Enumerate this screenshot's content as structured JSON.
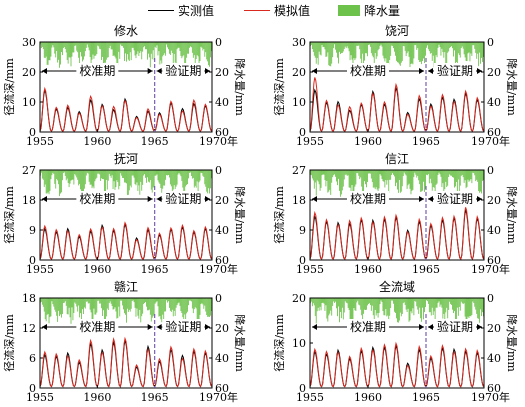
{
  "legend": {
    "observed": "实测值",
    "simulated": "模拟值",
    "precip": "降水量"
  },
  "colors": {
    "observed": "#000000",
    "simulated": "#d9281e",
    "precip": "#6cc24a",
    "divider": "#7a5fb0"
  },
  "period_labels": {
    "calibration": "校准期",
    "validation": "验证期"
  },
  "chart_data": [
    {
      "type": "line",
      "title": "修水",
      "ylabel": "径流深/mm",
      "y2label": "降水量/mm",
      "xlim": [
        1955,
        1970
      ],
      "ylim": [
        0,
        30
      ],
      "y2lim": [
        0,
        60
      ],
      "yticks": [
        "0",
        "10",
        "20",
        "30"
      ],
      "y2ticks": [
        "0",
        "20",
        "40",
        "60"
      ],
      "xticks": [
        "1955",
        "1960",
        "1965",
        "1970年"
      ],
      "divider_x": 1965,
      "peaks": [
        {
          "year": 1955.4,
          "sim": 14.5,
          "obs": 13.8
        },
        {
          "year": 1956.4,
          "sim": 8.2,
          "obs": 7.6
        },
        {
          "year": 1957.4,
          "sim": 8.9,
          "obs": 8.1
        },
        {
          "year": 1958.4,
          "sim": 6.3,
          "obs": 6.8
        },
        {
          "year": 1959.4,
          "sim": 11.9,
          "obs": 10.6
        },
        {
          "year": 1960.4,
          "sim": 8.7,
          "obs": 9.2
        },
        {
          "year": 1961.4,
          "sim": 8.5,
          "obs": 7.4
        },
        {
          "year": 1962.4,
          "sim": 10.4,
          "obs": 11.0
        },
        {
          "year": 1963.4,
          "sim": 4.8,
          "obs": 5.2
        },
        {
          "year": 1964.4,
          "sim": 7.7,
          "obs": 6.9
        },
        {
          "year": 1965.4,
          "sim": 5.9,
          "obs": 6.4
        },
        {
          "year": 1966.4,
          "sim": 10.2,
          "obs": 9.6
        },
        {
          "year": 1967.4,
          "sim": 7.0,
          "obs": 7.8
        },
        {
          "year": 1968.4,
          "sim": 10.6,
          "obs": 9.4
        },
        {
          "year": 1969.4,
          "sim": 9.2,
          "obs": 8.7
        }
      ]
    },
    {
      "type": "line",
      "title": "饶河",
      "ylabel": "径流深/mm",
      "y2label": "降水量/mm",
      "xlim": [
        1955,
        1970
      ],
      "ylim": [
        0,
        30
      ],
      "y2lim": [
        0,
        60
      ],
      "yticks": [
        "0",
        "10",
        "20",
        "30"
      ],
      "y2ticks": [
        "0",
        "20",
        "40",
        "60"
      ],
      "xticks": [
        "1955",
        "1960",
        "1965",
        "1970年"
      ],
      "divider_x": 1965,
      "peaks": [
        {
          "year": 1955.4,
          "sim": 18.2,
          "obs": 14.0
        },
        {
          "year": 1956.4,
          "sim": 10.5,
          "obs": 9.8
        },
        {
          "year": 1957.4,
          "sim": 9.0,
          "obs": 10.1
        },
        {
          "year": 1958.4,
          "sim": 8.4,
          "obs": 7.2
        },
        {
          "year": 1959.4,
          "sim": 9.6,
          "obs": 9.1
        },
        {
          "year": 1960.4,
          "sim": 12.8,
          "obs": 13.5
        },
        {
          "year": 1961.4,
          "sim": 10.0,
          "obs": 9.2
        },
        {
          "year": 1962.4,
          "sim": 15.8,
          "obs": 14.6
        },
        {
          "year": 1963.4,
          "sim": 5.9,
          "obs": 6.5
        },
        {
          "year": 1964.4,
          "sim": 12.1,
          "obs": 11.0
        },
        {
          "year": 1965.4,
          "sim": 8.6,
          "obs": 9.3
        },
        {
          "year": 1966.4,
          "sim": 12.4,
          "obs": 11.5
        },
        {
          "year": 1967.4,
          "sim": 10.1,
          "obs": 10.9
        },
        {
          "year": 1968.4,
          "sim": 13.6,
          "obs": 12.8
        },
        {
          "year": 1969.4,
          "sim": 11.4,
          "obs": 10.7
        }
      ]
    },
    {
      "type": "line",
      "title": "抚河",
      "ylabel": "径流深/mm",
      "y2label": "降水量/mm",
      "xlim": [
        1955,
        1970
      ],
      "ylim": [
        0,
        27
      ],
      "y2lim": [
        0,
        60
      ],
      "yticks": [
        "0",
        "9",
        "18",
        "27"
      ],
      "y2ticks": [
        "0",
        "20",
        "40",
        "60"
      ],
      "xticks": [
        "1955",
        "1960",
        "1965",
        "1970年"
      ],
      "divider_x": 1965,
      "peaks": [
        {
          "year": 1955.4,
          "sim": 10.2,
          "obs": 9.3
        },
        {
          "year": 1956.4,
          "sim": 9.1,
          "obs": 8.4
        },
        {
          "year": 1957.4,
          "sim": 8.7,
          "obs": 9.4
        },
        {
          "year": 1958.4,
          "sim": 7.6,
          "obs": 7.0
        },
        {
          "year": 1959.4,
          "sim": 9.3,
          "obs": 8.6
        },
        {
          "year": 1960.4,
          "sim": 9.8,
          "obs": 10.4
        },
        {
          "year": 1961.4,
          "sim": 9.4,
          "obs": 8.8
        },
        {
          "year": 1962.4,
          "sim": 11.2,
          "obs": 10.6
        },
        {
          "year": 1963.4,
          "sim": 6.1,
          "obs": 6.6
        },
        {
          "year": 1964.4,
          "sim": 9.7,
          "obs": 9.0
        },
        {
          "year": 1965.4,
          "sim": 8.0,
          "obs": 7.5
        },
        {
          "year": 1966.4,
          "sim": 9.6,
          "obs": 9.1
        },
        {
          "year": 1967.4,
          "sim": 10.4,
          "obs": 9.8
        },
        {
          "year": 1968.4,
          "sim": 8.8,
          "obs": 8.3
        },
        {
          "year": 1969.4,
          "sim": 9.9,
          "obs": 9.4
        }
      ]
    },
    {
      "type": "line",
      "title": "信江",
      "ylabel": "径流深/mm",
      "y2label": "降水量/mm",
      "xlim": [
        1955,
        1970
      ],
      "ylim": [
        0,
        27
      ],
      "y2lim": [
        0,
        60
      ],
      "yticks": [
        "0",
        "9",
        "18",
        "27"
      ],
      "y2ticks": [
        "0",
        "20",
        "40",
        "60"
      ],
      "xticks": [
        "1955",
        "1960",
        "1965",
        "1970年"
      ],
      "divider_x": 1965,
      "peaks": [
        {
          "year": 1955.4,
          "sim": 14.2,
          "obs": 13.0
        },
        {
          "year": 1956.4,
          "sim": 12.1,
          "obs": 11.5
        },
        {
          "year": 1957.4,
          "sim": 10.6,
          "obs": 11.2
        },
        {
          "year": 1958.4,
          "sim": 11.8,
          "obs": 10.9
        },
        {
          "year": 1959.4,
          "sim": 12.6,
          "obs": 12.0
        },
        {
          "year": 1960.4,
          "sim": 11.3,
          "obs": 11.9
        },
        {
          "year": 1961.4,
          "sim": 12.9,
          "obs": 12.2
        },
        {
          "year": 1962.4,
          "sim": 13.4,
          "obs": 12.7
        },
        {
          "year": 1963.4,
          "sim": 8.4,
          "obs": 8.9
        },
        {
          "year": 1964.4,
          "sim": 12.2,
          "obs": 11.5
        },
        {
          "year": 1965.4,
          "sim": 10.9,
          "obs": 10.3
        },
        {
          "year": 1966.4,
          "sim": 12.7,
          "obs": 11.9
        },
        {
          "year": 1967.4,
          "sim": 13.1,
          "obs": 12.5
        },
        {
          "year": 1968.4,
          "sim": 15.8,
          "obs": 14.9
        },
        {
          "year": 1969.4,
          "sim": 13.0,
          "obs": 12.4
        }
      ]
    },
    {
      "type": "line",
      "title": "赣江",
      "ylabel": "径流深/mm",
      "y2label": "降水量/mm",
      "xlim": [
        1955,
        1970
      ],
      "ylim": [
        0,
        18
      ],
      "y2lim": [
        0,
        60
      ],
      "yticks": [
        "0",
        "6",
        "12",
        "18"
      ],
      "y2ticks": [
        "0",
        "20",
        "40",
        "60"
      ],
      "xticks": [
        "1955",
        "1960",
        "1965",
        "1970年"
      ],
      "divider_x": 1965,
      "peaks": [
        {
          "year": 1955.4,
          "sim": 7.2,
          "obs": 6.6
        },
        {
          "year": 1956.4,
          "sim": 6.8,
          "obs": 6.3
        },
        {
          "year": 1957.4,
          "sim": 6.4,
          "obs": 7.0
        },
        {
          "year": 1958.4,
          "sim": 5.6,
          "obs": 5.1
        },
        {
          "year": 1959.4,
          "sim": 9.5,
          "obs": 8.8
        },
        {
          "year": 1960.4,
          "sim": 7.1,
          "obs": 7.6
        },
        {
          "year": 1961.4,
          "sim": 9.8,
          "obs": 9.1
        },
        {
          "year": 1962.4,
          "sim": 9.9,
          "obs": 9.4
        },
        {
          "year": 1963.4,
          "sim": 4.6,
          "obs": 4.2
        },
        {
          "year": 1964.4,
          "sim": 7.7,
          "obs": 8.3
        },
        {
          "year": 1965.4,
          "sim": 5.8,
          "obs": 5.3
        },
        {
          "year": 1966.4,
          "sim": 8.2,
          "obs": 7.6
        },
        {
          "year": 1967.4,
          "sim": 5.9,
          "obs": 6.5
        },
        {
          "year": 1968.4,
          "sim": 7.8,
          "obs": 7.3
        },
        {
          "year": 1969.4,
          "sim": 7.4,
          "obs": 7.0
        }
      ]
    },
    {
      "type": "line",
      "title": "全流域",
      "ylabel": "径流深/mm",
      "y2label": "降水量/mm",
      "xlim": [
        1955,
        1970
      ],
      "ylim": [
        0,
        20
      ],
      "y2lim": [
        0,
        60
      ],
      "yticks": [
        "0",
        "10",
        "20"
      ],
      "y2ticks": [
        "0",
        "20",
        "40",
        "60"
      ],
      "xticks": [
        "1955",
        "1960",
        "1965",
        "1970年"
      ],
      "divider_x": 1965,
      "peaks": [
        {
          "year": 1955.4,
          "sim": 8.6,
          "obs": 8.0
        },
        {
          "year": 1956.4,
          "sim": 8.1,
          "obs": 7.5
        },
        {
          "year": 1957.4,
          "sim": 7.9,
          "obs": 8.4
        },
        {
          "year": 1958.4,
          "sim": 7.0,
          "obs": 6.5
        },
        {
          "year": 1959.4,
          "sim": 8.8,
          "obs": 8.2
        },
        {
          "year": 1960.4,
          "sim": 8.4,
          "obs": 9.0
        },
        {
          "year": 1961.4,
          "sim": 9.6,
          "obs": 9.0
        },
        {
          "year": 1962.4,
          "sim": 9.9,
          "obs": 9.3
        },
        {
          "year": 1963.4,
          "sim": 5.0,
          "obs": 5.5
        },
        {
          "year": 1964.4,
          "sim": 9.2,
          "obs": 8.5
        },
        {
          "year": 1965.4,
          "sim": 7.1,
          "obs": 6.6
        },
        {
          "year": 1966.4,
          "sim": 9.4,
          "obs": 8.8
        },
        {
          "year": 1967.4,
          "sim": 8.0,
          "obs": 8.6
        },
        {
          "year": 1968.4,
          "sim": 8.7,
          "obs": 8.1
        },
        {
          "year": 1969.4,
          "sim": 8.3,
          "obs": 7.8
        }
      ]
    }
  ]
}
